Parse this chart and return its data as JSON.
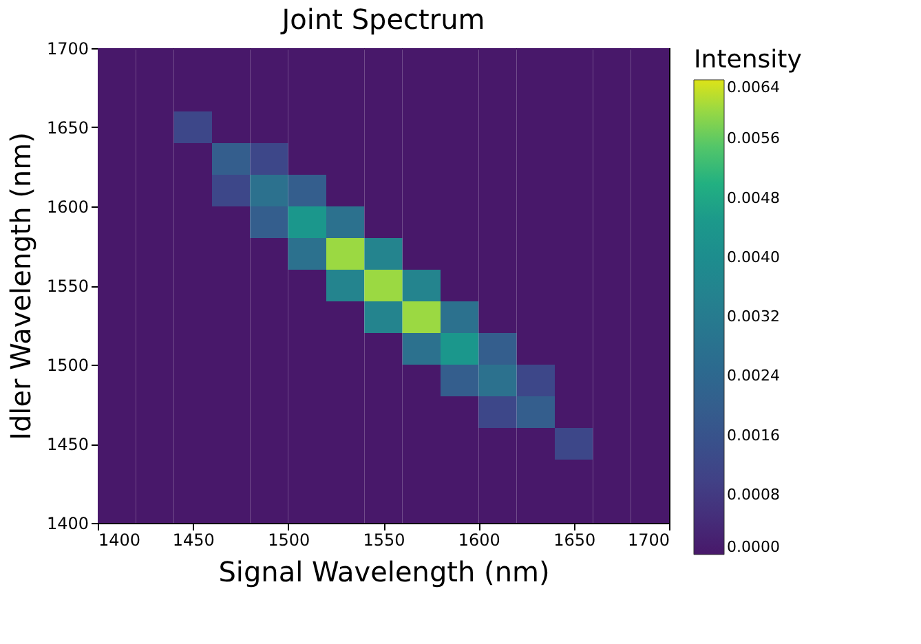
{
  "chart_data": {
    "type": "heatmap",
    "title": "Joint Spectrum",
    "xlabel": "Signal Wavelength (nm)",
    "ylabel": "Idler Wavelength (nm)",
    "clabel": "Intensity",
    "x": [
      1410,
      1430,
      1450,
      1470,
      1490,
      1510,
      1530,
      1550,
      1570,
      1590,
      1610,
      1630,
      1650,
      1670,
      1690
    ],
    "y": [
      1690,
      1670,
      1650,
      1630,
      1610,
      1590,
      1570,
      1550,
      1530,
      1510,
      1490,
      1470,
      1450,
      1430,
      1410
    ],
    "xlim": [
      1400,
      1700
    ],
    "ylim": [
      1400,
      1700
    ],
    "xticks": [
      1400,
      1450,
      1500,
      1550,
      1600,
      1650,
      1700
    ],
    "yticks": [
      1400,
      1450,
      1500,
      1550,
      1600,
      1650,
      1700
    ],
    "clim": [
      0,
      0.0064
    ],
    "cticks": [
      {
        "value": 0,
        "label": "0.0000"
      },
      0.0008,
      0.0016,
      0.0024,
      0.0032,
      {
        "value": 0.004,
        "label": "0.0040"
      },
      0.0048,
      0.0056,
      0.0064
    ],
    "colors": [
      "#48186a",
      "#433e85",
      "#38598c",
      "#2d708e",
      "#25858e",
      "#1e9b8a",
      "#51c56a",
      "#dde318"
    ],
    "cells": [
      [
        0,
        0,
        0,
        0,
        0,
        0,
        0,
        0,
        0,
        0,
        0,
        0,
        0,
        0,
        0
      ],
      [
        0,
        0,
        0,
        0,
        0,
        0,
        0,
        0,
        0,
        0,
        0,
        0,
        0,
        0,
        0
      ],
      [
        0,
        0,
        0.0012,
        0,
        0,
        0,
        0,
        0,
        0,
        0,
        0,
        0,
        0,
        0,
        0
      ],
      [
        0,
        0,
        0,
        0.002,
        0.0012,
        0,
        0,
        0,
        0,
        0,
        0,
        0,
        0,
        0,
        0
      ],
      [
        0,
        0,
        0,
        0.0012,
        0.0028,
        0.002,
        0,
        0,
        0,
        0,
        0,
        0,
        0,
        0,
        0
      ],
      [
        0,
        0,
        0,
        0,
        0.002,
        0.0044,
        0.0028,
        0,
        0,
        0,
        0,
        0,
        0,
        0,
        0
      ],
      [
        0,
        0,
        0,
        0,
        0,
        0.0028,
        0.006,
        0.0036,
        0,
        0,
        0,
        0,
        0,
        0,
        0
      ],
      [
        0,
        0,
        0,
        0,
        0,
        0,
        0.0036,
        0.006,
        0.0036,
        0,
        0,
        0,
        0,
        0,
        0
      ],
      [
        0,
        0,
        0,
        0,
        0,
        0,
        0,
        0.0036,
        0.006,
        0.0028,
        0,
        0,
        0,
        0,
        0
      ],
      [
        0,
        0,
        0,
        0,
        0,
        0,
        0,
        0,
        0.0028,
        0.0044,
        0.002,
        0,
        0,
        0,
        0
      ],
      [
        0,
        0,
        0,
        0,
        0,
        0,
        0,
        0,
        0,
        0.002,
        0.0028,
        0.0012,
        0,
        0,
        0
      ],
      [
        0,
        0,
        0,
        0,
        0,
        0,
        0,
        0,
        0,
        0,
        0.0012,
        0.002,
        0,
        0,
        0
      ],
      [
        0,
        0,
        0,
        0,
        0,
        0,
        0,
        0,
        0,
        0,
        0,
        0,
        0.0012,
        0,
        0
      ],
      [
        0,
        0,
        0,
        0,
        0,
        0,
        0,
        0,
        0,
        0,
        0,
        0,
        0,
        0,
        0
      ],
      [
        0,
        0,
        0,
        0,
        0,
        0,
        0,
        0,
        0,
        0,
        0,
        0,
        0,
        0,
        0
      ]
    ]
  }
}
